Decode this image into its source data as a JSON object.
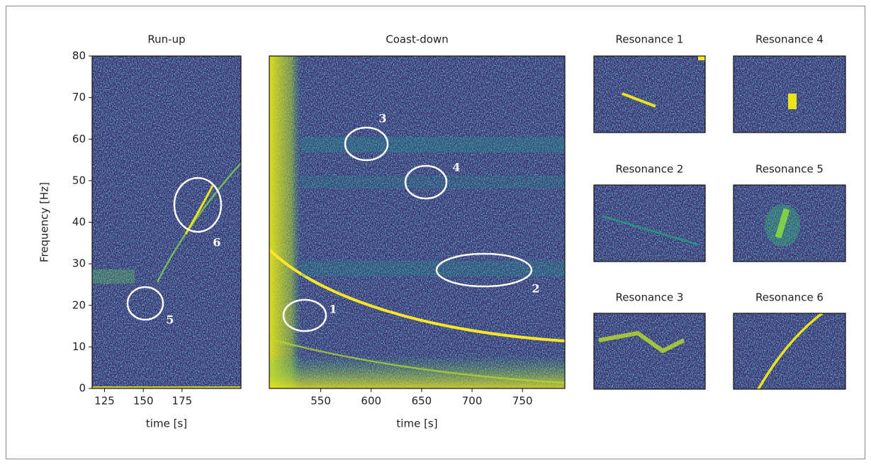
{
  "chart_data": [
    {
      "type": "spectrogram",
      "title": "Run-up",
      "xlabel": "time [s]",
      "ylabel": "Frequency [Hz]",
      "xlim": [
        117,
        213
      ],
      "xticks": [
        125,
        150,
        175
      ],
      "ylim": [
        0,
        80
      ],
      "yticks": [
        0,
        10,
        20,
        30,
        40,
        50,
        60,
        70,
        80
      ],
      "annotations": [
        "5",
        "6"
      ]
    },
    {
      "type": "spectrogram",
      "title": "Coast-down",
      "xlabel": "time [s]",
      "xlim": [
        499,
        792
      ],
      "xticks": [
        550,
        600,
        650,
        700,
        750
      ],
      "ylim": [
        0,
        80
      ],
      "annotations": [
        "1",
        "2",
        "3",
        "4"
      ]
    },
    {
      "type": "spectrogram",
      "title": "Resonance 1"
    },
    {
      "type": "spectrogram",
      "title": "Resonance 4"
    },
    {
      "type": "spectrogram",
      "title": "Resonance 2"
    },
    {
      "type": "spectrogram",
      "title": "Resonance 5"
    },
    {
      "type": "spectrogram",
      "title": "Resonance 3"
    },
    {
      "type": "spectrogram",
      "title": "Resonance 6"
    }
  ]
}
